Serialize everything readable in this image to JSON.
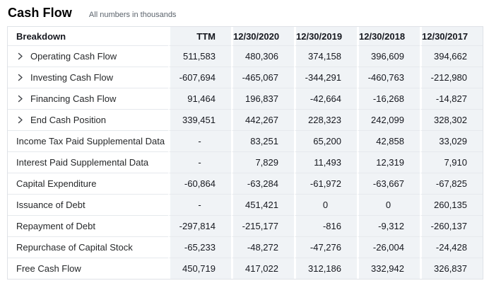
{
  "page": {
    "title": "Cash Flow",
    "subtitle": "All numbers in thousands"
  },
  "table": {
    "columns": [
      "Breakdown",
      "TTM",
      "12/30/2020",
      "12/30/2019",
      "12/30/2018",
      "12/30/2017"
    ],
    "rows": [
      {
        "label": "Operating Cash Flow",
        "expandable": true,
        "values": [
          "511,583",
          "480,306",
          "374,158",
          "396,609",
          "394,662"
        ]
      },
      {
        "label": "Investing Cash Flow",
        "expandable": true,
        "values": [
          "-607,694",
          "-465,067",
          "-344,291",
          "-460,763",
          "-212,980"
        ]
      },
      {
        "label": "Financing Cash Flow",
        "expandable": true,
        "values": [
          "91,464",
          "196,837",
          "-42,664",
          "-16,268",
          "-14,827"
        ]
      },
      {
        "label": "End Cash Position",
        "expandable": true,
        "values": [
          "339,451",
          "442,267",
          "228,323",
          "242,099",
          "328,302"
        ]
      },
      {
        "label": "Income Tax Paid Supplemental Data",
        "expandable": false,
        "values": [
          "-",
          "83,251",
          "65,200",
          "42,858",
          "33,029"
        ]
      },
      {
        "label": "Interest Paid Supplemental Data",
        "expandable": false,
        "values": [
          "-",
          "7,829",
          "11,493",
          "12,319",
          "7,910"
        ]
      },
      {
        "label": "Capital Expenditure",
        "expandable": false,
        "values": [
          "-60,864",
          "-63,284",
          "-61,972",
          "-63,667",
          "-67,825"
        ]
      },
      {
        "label": "Issuance of Debt",
        "expandable": false,
        "values": [
          "-",
          "451,421",
          "0",
          "0",
          "260,135"
        ]
      },
      {
        "label": "Repayment of Debt",
        "expandable": false,
        "values": [
          "-297,814",
          "-215,177",
          "-816",
          "-9,312",
          "-260,137"
        ]
      },
      {
        "label": "Repurchase of Capital Stock",
        "expandable": false,
        "values": [
          "-65,233",
          "-48,272",
          "-47,276",
          "-26,004",
          "-24,428"
        ]
      },
      {
        "label": "Free Cash Flow",
        "expandable": false,
        "values": [
          "450,719",
          "417,022",
          "312,186",
          "332,942",
          "326,837"
        ]
      }
    ]
  },
  "colors": {
    "column_stripe_bg": "#f0f3f6",
    "table_border": "#dfe2e7",
    "row_divider": "#e6e9ed",
    "text": "#16181f",
    "subtitle_text": "#5b636c"
  }
}
